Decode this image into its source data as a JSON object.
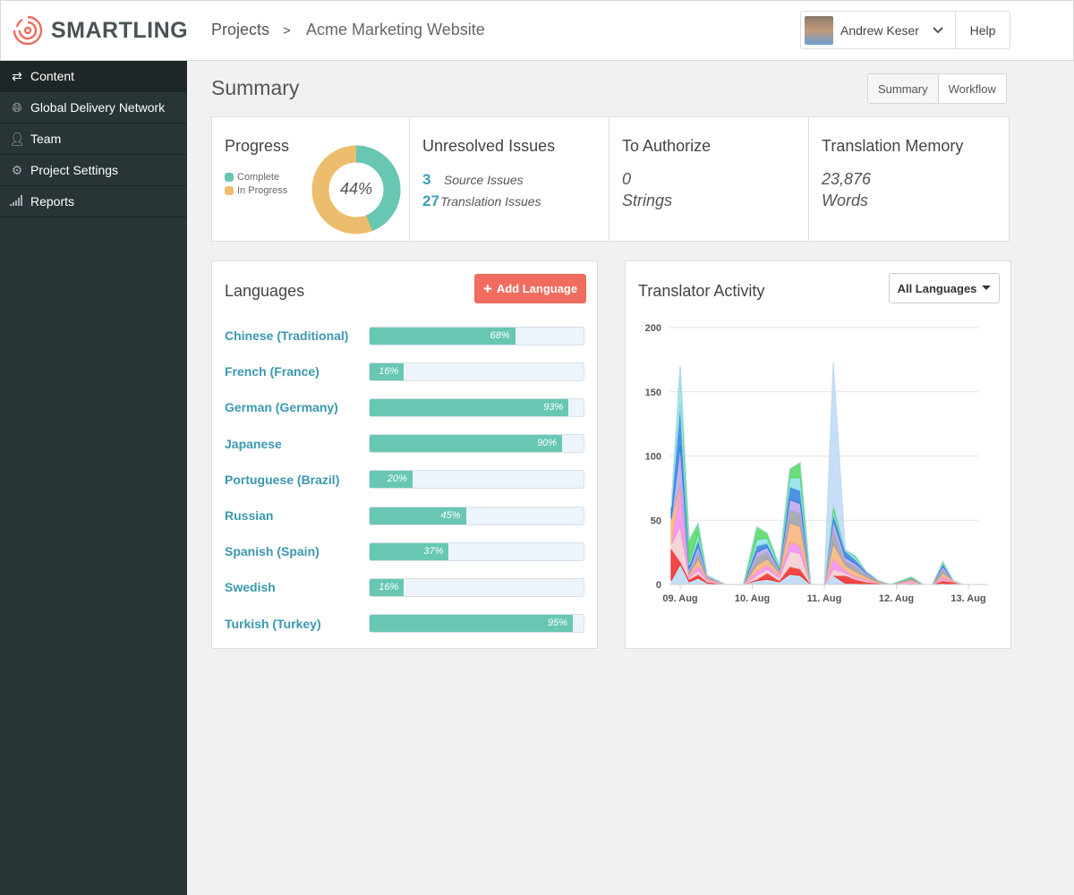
{
  "header": {
    "logo": "SMARTLING",
    "crumb_root": "Projects",
    "crumb_sep": ">",
    "crumb_current": "Acme Marketing Website",
    "user": "Andrew Keser",
    "help": "Help"
  },
  "sidebar": {
    "items": [
      {
        "label": "Content",
        "icon": "arrows-icon"
      },
      {
        "label": "Global Delivery Network",
        "icon": "globe-icon"
      },
      {
        "label": "Team",
        "icon": "user-icon"
      },
      {
        "label": "Project Settings",
        "icon": "gear-icon"
      },
      {
        "label": "Reports",
        "icon": "signal-icon"
      }
    ]
  },
  "page": {
    "title": "Summary",
    "tabs": [
      "Summary",
      "Workflow"
    ]
  },
  "stats": {
    "progress": {
      "title": "Progress",
      "complete_label": "Complete",
      "in_progress_label": "In Progress",
      "percent": 44,
      "percent_label": "44%",
      "colors": {
        "complete": "#68c7b2",
        "in_progress": "#ecbd6c"
      }
    },
    "issues": {
      "title": "Unresolved Issues",
      "source_count": "3",
      "source_label": "Source Issues",
      "translation_count": "27",
      "translation_label": "Translation Issues"
    },
    "authorize": {
      "title": "To Authorize",
      "value": "0",
      "unit": "Strings"
    },
    "memory": {
      "title": "Translation Memory",
      "value": "23,876",
      "unit": "Words"
    }
  },
  "languages": {
    "title": "Languages",
    "add_label": "Add Language",
    "items": [
      {
        "name": "Chinese (Traditional)",
        "percent": 68
      },
      {
        "name": "French (France)",
        "percent": 16
      },
      {
        "name": "German (Germany)",
        "percent": 93
      },
      {
        "name": "Japanese",
        "percent": 90
      },
      {
        "name": "Portuguese (Brazil)",
        "percent": 20
      },
      {
        "name": "Russian",
        "percent": 45
      },
      {
        "name": "Spanish (Spain)",
        "percent": 37
      },
      {
        "name": "Swedish",
        "percent": 16
      },
      {
        "name": "Turkish (Turkey)",
        "percent": 95
      }
    ]
  },
  "activity": {
    "title": "Translator Activity",
    "filter": "All Languages"
  },
  "chart_data": {
    "type": "area",
    "stacked": true,
    "ylim": [
      0,
      200
    ],
    "yticks": [
      0,
      50,
      100,
      150,
      200
    ],
    "xticks": [
      "09. Aug",
      "10. Aug",
      "11. Aug",
      "12. Aug",
      "13. Aug"
    ],
    "grid": true,
    "x": [
      "08 Aug 21:00",
      "09 Aug 00:00",
      "09 Aug 03:00",
      "09 Aug 06:00",
      "09 Aug 09:00",
      "09 Aug 15:00",
      "09 Aug 21:00",
      "10 Aug 01:30",
      "10 Aug 05:00",
      "10 Aug 09:00",
      "10 Aug 12:30",
      "10 Aug 16:00",
      "10 Aug 19:30",
      "11 Aug 00:00",
      "11 Aug 03:00",
      "11 Aug 07:00",
      "11 Aug 10:30",
      "11 Aug 14:00",
      "11 Aug 18:00",
      "11 Aug 22:00",
      "12 Aug 05:00",
      "12 Aug 09:00",
      "12 Aug 12:00",
      "12 Aug 15:30",
      "12 Aug 19:00",
      "12 Aug 22:00",
      "13 Aug 06:00"
    ],
    "series": [
      {
        "color": "#b8d8f2",
        "values": [
          3,
          16,
          2,
          5,
          1,
          0,
          0,
          3,
          4,
          2,
          8,
          7,
          0,
          0,
          7,
          1,
          1,
          0,
          0,
          0,
          0,
          0,
          0,
          1,
          0,
          0,
          0
        ]
      },
      {
        "color": "#f02828",
        "values": [
          25,
          2,
          2,
          3,
          1,
          0,
          0,
          1,
          5,
          1,
          6,
          5,
          0,
          0,
          0,
          6,
          3,
          2,
          1,
          0,
          1,
          0,
          0,
          2,
          2,
          0,
          0
        ]
      },
      {
        "color": "#f2cccc",
        "values": [
          3,
          27,
          1,
          3,
          1,
          0,
          0,
          3,
          3,
          2,
          12,
          12,
          0,
          0,
          5,
          2,
          1,
          1,
          0,
          0,
          1,
          0,
          0,
          1,
          0,
          0,
          0
        ]
      },
      {
        "color": "#f08cf0",
        "values": [
          0,
          30,
          1,
          4,
          1,
          0,
          0,
          3,
          3,
          2,
          7,
          6,
          0,
          0,
          8,
          2,
          1,
          1,
          0,
          0,
          1,
          0,
          0,
          2,
          0,
          0,
          0
        ]
      },
      {
        "color": "#f8b078",
        "values": [
          20,
          3,
          2,
          5,
          1,
          0,
          0,
          5,
          5,
          2,
          15,
          15,
          0,
          0,
          12,
          4,
          4,
          2,
          1,
          0,
          1,
          0,
          0,
          3,
          1,
          0,
          0
        ]
      },
      {
        "color": "#9aa0a8",
        "values": [
          0,
          0,
          2,
          5,
          1,
          0,
          0,
          6,
          5,
          2,
          10,
          10,
          0,
          0,
          10,
          3,
          4,
          2,
          1,
          0,
          1,
          0,
          0,
          3,
          0,
          0,
          0
        ]
      },
      {
        "color": "#b9a4e8",
        "values": [
          0,
          30,
          2,
          5,
          1,
          0,
          0,
          4,
          4,
          1,
          8,
          8,
          0,
          0,
          8,
          3,
          2,
          1,
          0,
          0,
          0,
          0,
          0,
          2,
          0,
          0,
          0
        ]
      },
      {
        "color": "#2f7fe0",
        "values": [
          9,
          32,
          3,
          5,
          0,
          0,
          0,
          5,
          3,
          1,
          10,
          10,
          0,
          0,
          5,
          5,
          3,
          1,
          0,
          0,
          0,
          0,
          0,
          2,
          0,
          0,
          0
        ]
      },
      {
        "color": "#8ee0e8",
        "values": [
          0,
          30,
          2,
          5,
          0,
          0,
          0,
          5,
          4,
          1,
          7,
          10,
          0,
          0,
          3,
          1,
          2,
          0,
          0,
          0,
          0,
          0,
          0,
          1,
          0,
          0,
          0
        ]
      },
      {
        "color": "#50d860",
        "values": [
          0,
          0,
          18,
          8,
          0,
          0,
          0,
          10,
          4,
          1,
          7,
          12,
          0,
          0,
          5,
          0,
          1,
          0,
          0,
          0,
          1,
          0,
          0,
          1,
          0,
          0,
          0
        ]
      },
      {
        "color": "#bcd8f4",
        "values": [
          0,
          0,
          0,
          0,
          0,
          0,
          0,
          0,
          0,
          0,
          0,
          0,
          0,
          0,
          110,
          0,
          0,
          0,
          0,
          0,
          0,
          0,
          0,
          0,
          0,
          0,
          0
        ]
      }
    ]
  }
}
